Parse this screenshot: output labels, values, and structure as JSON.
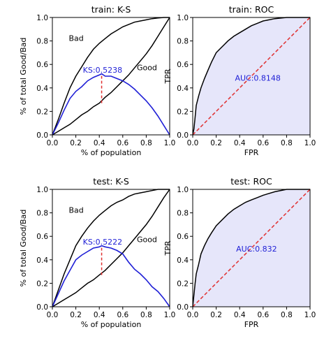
{
  "figure": {
    "background": "#ffffff"
  },
  "chart_data": [
    {
      "id": "train-ks",
      "type": "line",
      "title": "train: K-S",
      "xlabel": "% of population",
      "ylabel": "% of total Good/Bad",
      "xlim": [
        0,
        1
      ],
      "ylim": [
        0,
        1
      ],
      "xticks": [
        "0.0",
        "0.2",
        "0.4",
        "0.6",
        "0.8",
        "1.0"
      ],
      "yticks": [
        "0.0",
        "0.2",
        "0.4",
        "0.6",
        "0.8",
        "1.0"
      ],
      "grid": false,
      "series": [
        {
          "name": "Bad",
          "color": "#000000",
          "x": [
            0,
            0.05,
            0.1,
            0.15,
            0.2,
            0.25,
            0.3,
            0.35,
            0.4,
            0.45,
            0.5,
            0.55,
            0.6,
            0.65,
            0.7,
            0.75,
            0.8,
            0.85,
            0.9,
            0.95,
            1.0
          ],
          "y": [
            0,
            0.13,
            0.27,
            0.4,
            0.5,
            0.58,
            0.66,
            0.73,
            0.78,
            0.82,
            0.86,
            0.89,
            0.92,
            0.94,
            0.96,
            0.97,
            0.98,
            0.99,
            0.995,
            1.0,
            1.0
          ]
        },
        {
          "name": "Good",
          "color": "#000000",
          "x": [
            0,
            0.05,
            0.1,
            0.15,
            0.2,
            0.25,
            0.3,
            0.35,
            0.4,
            0.45,
            0.5,
            0.55,
            0.6,
            0.65,
            0.7,
            0.75,
            0.8,
            0.85,
            0.9,
            0.95,
            1.0
          ],
          "y": [
            0,
            0.03,
            0.06,
            0.09,
            0.13,
            0.17,
            0.2,
            0.24,
            0.27,
            0.32,
            0.36,
            0.41,
            0.46,
            0.51,
            0.57,
            0.63,
            0.69,
            0.76,
            0.84,
            0.92,
            1.0
          ]
        },
        {
          "name": "KS",
          "color": "#1f1fd6",
          "x": [
            0,
            0.05,
            0.1,
            0.15,
            0.2,
            0.25,
            0.3,
            0.35,
            0.4,
            0.42,
            0.45,
            0.5,
            0.55,
            0.6,
            0.65,
            0.7,
            0.75,
            0.8,
            0.85,
            0.9,
            0.95,
            1.0
          ],
          "y": [
            0,
            0.1,
            0.21,
            0.31,
            0.37,
            0.41,
            0.46,
            0.49,
            0.51,
            0.52,
            0.5,
            0.5,
            0.48,
            0.46,
            0.43,
            0.39,
            0.34,
            0.29,
            0.23,
            0.16,
            0.08,
            0.0
          ]
        }
      ],
      "ks_marker": {
        "x": 0.42,
        "y_low": 0.27,
        "y_high": 0.52,
        "color": "#e03030"
      },
      "annotations": [
        {
          "text": "Bad",
          "x": 0.14,
          "y": 0.8
        },
        {
          "text": "Good",
          "x": 0.72,
          "y": 0.55
        },
        {
          "text": "KS:0.5238",
          "x": 0.26,
          "y": 0.53,
          "color": "#1f1fd6"
        }
      ]
    },
    {
      "id": "train-roc",
      "type": "area",
      "title": "train: ROC",
      "xlabel": "FPR",
      "ylabel": "TPR",
      "xlim": [
        0,
        1
      ],
      "ylim": [
        0,
        1
      ],
      "xticks": [
        "0.0",
        "0.2",
        "0.4",
        "0.6",
        "0.8",
        "1.0"
      ],
      "yticks": [
        "0.0",
        "0.2",
        "0.4",
        "0.6",
        "0.8",
        "1.0"
      ],
      "grid": false,
      "fill_color": "#e6e6fa",
      "series": [
        {
          "name": "ROC",
          "color": "#000000",
          "x": [
            0,
            0.01,
            0.02,
            0.03,
            0.05,
            0.07,
            0.1,
            0.13,
            0.16,
            0.2,
            0.23,
            0.27,
            0.3,
            0.35,
            0.4,
            0.45,
            0.5,
            0.55,
            0.6,
            0.7,
            0.8,
            0.9,
            1.0
          ],
          "y": [
            0,
            0.05,
            0.15,
            0.25,
            0.33,
            0.4,
            0.48,
            0.55,
            0.62,
            0.7,
            0.73,
            0.77,
            0.8,
            0.84,
            0.87,
            0.9,
            0.93,
            0.95,
            0.97,
            0.99,
            1.0,
            1.0,
            1.0
          ]
        },
        {
          "name": "diagonal",
          "color": "#e03030",
          "dashed": true,
          "x": [
            0,
            1
          ],
          "y": [
            0,
            1
          ]
        }
      ],
      "annotations": [
        {
          "text": "AUC:0.8148",
          "x": 0.36,
          "y": 0.46,
          "color": "#1f1fd6"
        }
      ]
    },
    {
      "id": "test-ks",
      "type": "line",
      "title": "test: K-S",
      "xlabel": "% of population",
      "ylabel": "% of total Good/Bad",
      "xlim": [
        0,
        1
      ],
      "ylim": [
        0,
        1
      ],
      "xticks": [
        "0.0",
        "0.2",
        "0.4",
        "0.6",
        "0.8",
        "1.0"
      ],
      "yticks": [
        "0.0",
        "0.2",
        "0.4",
        "0.6",
        "0.8",
        "1.0"
      ],
      "grid": false,
      "series": [
        {
          "name": "Bad",
          "color": "#000000",
          "x": [
            0,
            0.05,
            0.1,
            0.15,
            0.2,
            0.25,
            0.3,
            0.35,
            0.4,
            0.45,
            0.5,
            0.55,
            0.6,
            0.65,
            0.7,
            0.75,
            0.8,
            0.85,
            0.9,
            0.95,
            1.0
          ],
          "y": [
            0,
            0.14,
            0.28,
            0.4,
            0.52,
            0.6,
            0.67,
            0.73,
            0.78,
            0.82,
            0.86,
            0.89,
            0.91,
            0.94,
            0.96,
            0.97,
            0.98,
            0.99,
            1.0,
            1.0,
            1.0
          ]
        },
        {
          "name": "Good",
          "color": "#000000",
          "x": [
            0,
            0.05,
            0.1,
            0.15,
            0.2,
            0.25,
            0.3,
            0.35,
            0.4,
            0.45,
            0.5,
            0.55,
            0.6,
            0.65,
            0.7,
            0.75,
            0.8,
            0.85,
            0.9,
            0.95,
            1.0
          ],
          "y": [
            0,
            0.03,
            0.06,
            0.09,
            0.12,
            0.16,
            0.2,
            0.23,
            0.27,
            0.31,
            0.36,
            0.41,
            0.46,
            0.52,
            0.58,
            0.64,
            0.7,
            0.77,
            0.85,
            0.93,
            1.0
          ]
        },
        {
          "name": "KS",
          "color": "#1f1fd6",
          "x": [
            0,
            0.05,
            0.1,
            0.15,
            0.2,
            0.25,
            0.3,
            0.35,
            0.4,
            0.42,
            0.45,
            0.5,
            0.55,
            0.6,
            0.65,
            0.7,
            0.75,
            0.8,
            0.85,
            0.9,
            0.95,
            1.0
          ],
          "y": [
            0,
            0.11,
            0.22,
            0.31,
            0.4,
            0.44,
            0.47,
            0.5,
            0.51,
            0.52,
            0.51,
            0.5,
            0.48,
            0.45,
            0.38,
            0.32,
            0.28,
            0.23,
            0.17,
            0.13,
            0.07,
            0.0
          ]
        }
      ],
      "ks_marker": {
        "x": 0.42,
        "y_low": 0.27,
        "y_high": 0.52,
        "color": "#e03030"
      },
      "annotations": [
        {
          "text": "Bad",
          "x": 0.14,
          "y": 0.8
        },
        {
          "text": "Good",
          "x": 0.72,
          "y": 0.55
        },
        {
          "text": "KS:0.5222",
          "x": 0.26,
          "y": 0.53,
          "color": "#1f1fd6"
        }
      ]
    },
    {
      "id": "test-roc",
      "type": "area",
      "title": "test: ROC",
      "xlabel": "FPR",
      "ylabel": "TPR",
      "xlim": [
        0,
        1
      ],
      "ylim": [
        0,
        1
      ],
      "xticks": [
        "0.0",
        "0.2",
        "0.4",
        "0.6",
        "0.8",
        "1.0"
      ],
      "yticks": [
        "0.0",
        "0.2",
        "0.4",
        "0.6",
        "0.8",
        "1.0"
      ],
      "grid": false,
      "fill_color": "#e6e6fa",
      "series": [
        {
          "name": "ROC",
          "color": "#000000",
          "x": [
            0,
            0.01,
            0.02,
            0.03,
            0.05,
            0.07,
            0.1,
            0.13,
            0.16,
            0.2,
            0.25,
            0.3,
            0.35,
            0.4,
            0.45,
            0.5,
            0.55,
            0.6,
            0.7,
            0.8,
            0.9,
            1.0
          ],
          "y": [
            0,
            0.1,
            0.2,
            0.28,
            0.36,
            0.45,
            0.52,
            0.58,
            0.63,
            0.69,
            0.74,
            0.79,
            0.83,
            0.86,
            0.89,
            0.91,
            0.93,
            0.95,
            0.98,
            1.0,
            1.0,
            1.0
          ]
        },
        {
          "name": "diagonal",
          "color": "#e03030",
          "dashed": true,
          "x": [
            0,
            1
          ],
          "y": [
            0,
            1
          ]
        }
      ],
      "annotations": [
        {
          "text": "AUC:0.832",
          "x": 0.37,
          "y": 0.47,
          "color": "#1f1fd6"
        }
      ]
    }
  ]
}
